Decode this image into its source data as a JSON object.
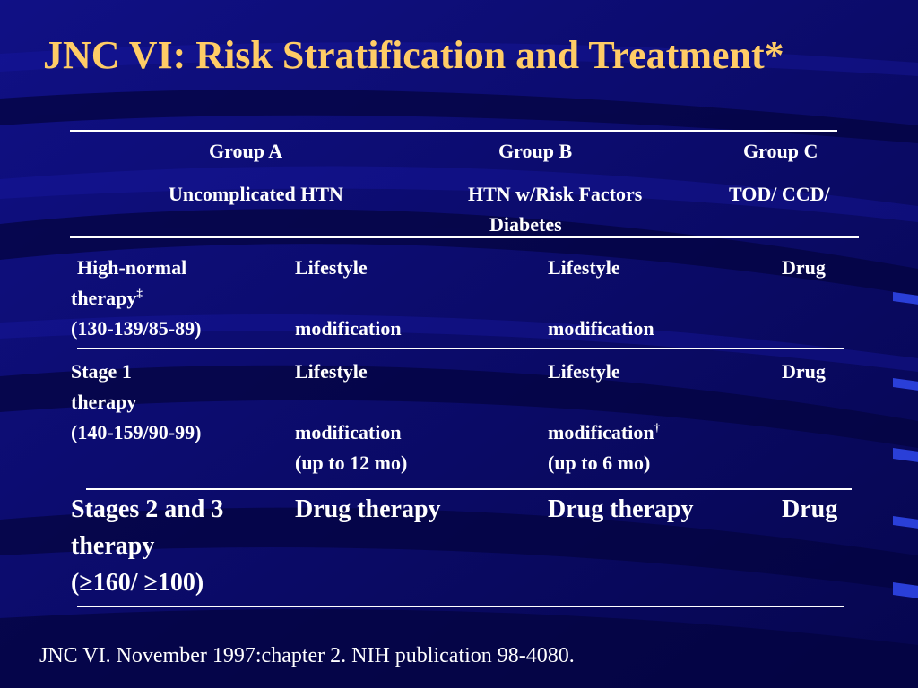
{
  "title": "JNC VI: Risk Stratification and Treatment*",
  "table": {
    "groups": [
      {
        "name": "Group A",
        "desc": "Uncomplicated HTN"
      },
      {
        "name": "Group B",
        "desc_line1": "HTN w/Risk Factors",
        "desc_line2": "Diabetes"
      },
      {
        "name": "Group C",
        "desc": "TOD/ CCD/"
      }
    ],
    "rows": [
      {
        "stage_line1": "High-normal",
        "stage_line2": "therapy",
        "stage_line2_sup": "‡",
        "stage_line3": "(130-139/85-89)",
        "a_line1": "Lifestyle",
        "a_line2": "modification",
        "b_line1": "Lifestyle",
        "b_line2": "modification",
        "c_line1": "Drug"
      },
      {
        "stage_line1": "Stage 1",
        "stage_line2": "therapy",
        "stage_line3": "(140-159/90-99)",
        "a_line1": "Lifestyle",
        "a_line2": "modification",
        "a_line3": "(up to 12 mo)",
        "b_line1": "Lifestyle",
        "b_line2": "modification",
        "b_line2_sup": "†",
        "b_line3": "(up to 6 mo)",
        "c_line1": "Drug"
      },
      {
        "stage_line1": "Stages 2 and 3",
        "stage_line2": "therapy",
        "stage_line3": "(≥160/ ≥100)",
        "a_line1": "Drug therapy",
        "b_line1": "Drug therapy",
        "c_line1": "Drug"
      }
    ]
  },
  "footer": "JNC VI. November 1997:chapter 2. NIH publication 98-4080.",
  "colors": {
    "background": "#0b0b6e",
    "title": "#ffcc66",
    "text": "#ffffff"
  }
}
